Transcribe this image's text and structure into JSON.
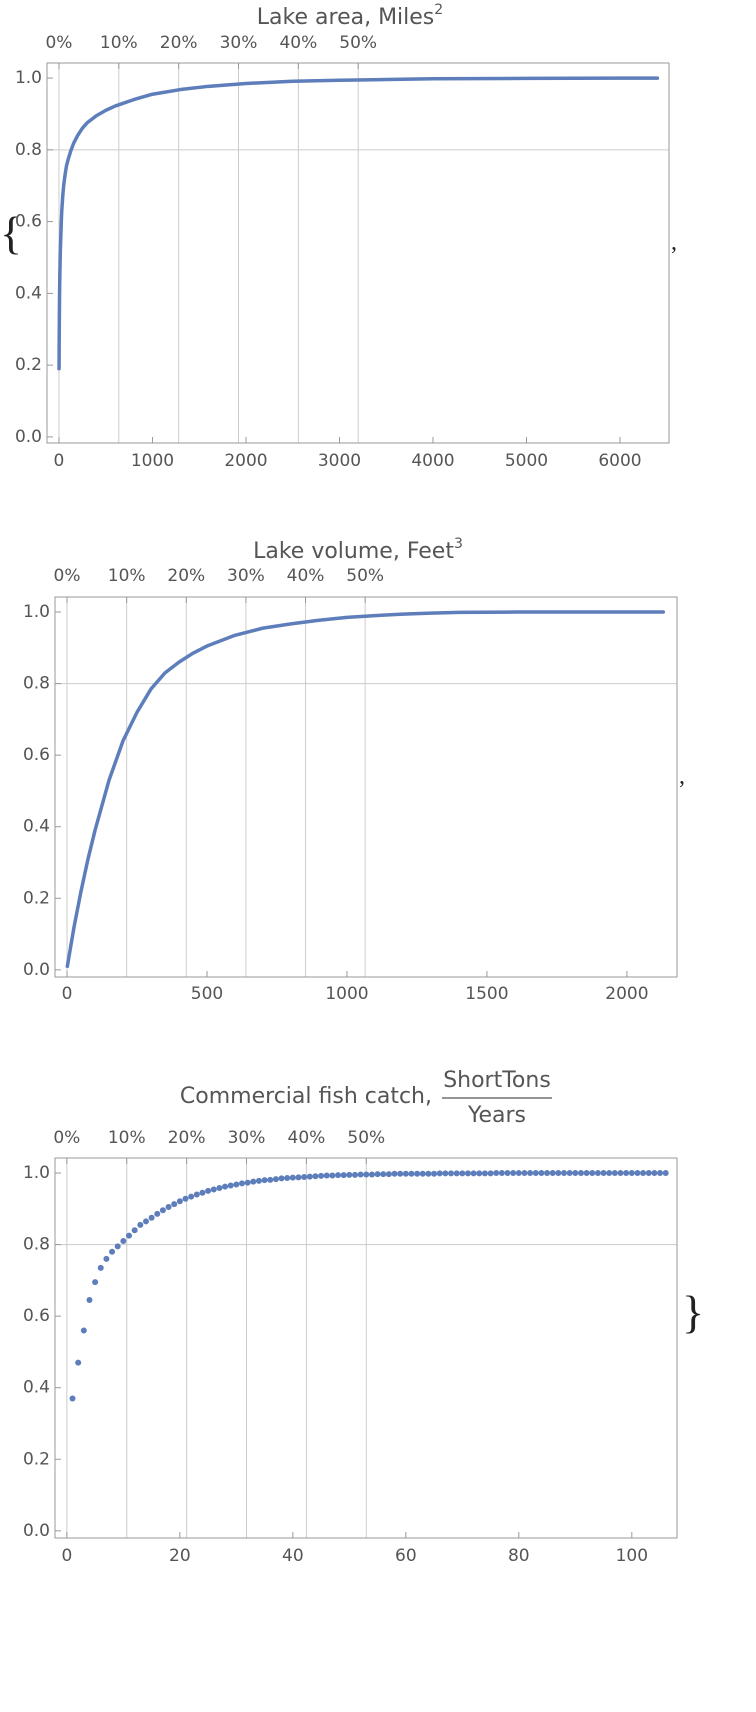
{
  "brackets": {
    "open": "{",
    "separator": ",",
    "close": "}"
  },
  "chart_data": [
    {
      "type": "line",
      "title": "Lake area, Miles",
      "title_exponent": "2",
      "color": "#5d7ebb",
      "x": [
        1,
        2,
        3,
        4,
        5,
        6,
        8,
        10,
        13,
        16,
        20,
        25,
        30,
        40,
        50,
        65,
        80,
        100,
        130,
        160,
        200,
        250,
        300,
        400,
        500,
        600,
        800,
        1000,
        1300,
        1600,
        2000,
        2500,
        3000,
        3500,
        4000,
        5000,
        6000,
        6400
      ],
      "values": [
        0.19,
        0.25,
        0.29,
        0.33,
        0.36,
        0.39,
        0.43,
        0.46,
        0.5,
        0.53,
        0.56,
        0.6,
        0.63,
        0.67,
        0.7,
        0.73,
        0.755,
        0.775,
        0.8,
        0.82,
        0.84,
        0.86,
        0.875,
        0.895,
        0.91,
        0.922,
        0.94,
        0.955,
        0.968,
        0.977,
        0.985,
        0.991,
        0.994,
        0.996,
        0.998,
        0.999,
        1.0,
        1.0
      ],
      "xlim": [
        -128,
        6524
      ],
      "ylim": [
        -0.017,
        1.042
      ],
      "xticks": [
        0,
        1000,
        2000,
        3000,
        4000,
        5000,
        6000
      ],
      "yticks": [
        {
          "value": 0,
          "label": "0.0"
        },
        0.2,
        0.4,
        0.6,
        0.8,
        {
          "value": 1,
          "label": "1.0"
        }
      ],
      "top_ticks": [
        {
          "value": 0,
          "label": "0%"
        },
        {
          "value": 640,
          "label": "10%"
        },
        {
          "value": 1280,
          "label": "20%"
        },
        {
          "value": 1920,
          "label": "30%"
        },
        {
          "value": 2560,
          "label": "40%"
        },
        {
          "value": 3200,
          "label": "50%"
        }
      ],
      "xgrid": true,
      "ygrid": [
        0.8
      ]
    },
    {
      "type": "line",
      "title": "Lake volume, Feet",
      "title_exponent": "3",
      "color": "#5d7ebb",
      "x": [
        1,
        25,
        50,
        75,
        100,
        150,
        200,
        250,
        300,
        350,
        400,
        450,
        500,
        600,
        700,
        800,
        900,
        1000,
        1100,
        1200,
        1300,
        1400,
        1600,
        1800,
        2000,
        2130
      ],
      "values": [
        0.01,
        0.12,
        0.22,
        0.31,
        0.39,
        0.53,
        0.64,
        0.72,
        0.785,
        0.83,
        0.86,
        0.885,
        0.905,
        0.935,
        0.955,
        0.967,
        0.977,
        0.985,
        0.99,
        0.994,
        0.997,
        0.999,
        1.0,
        1.0,
        1.0,
        1.0
      ],
      "xlim": [
        -43,
        2179
      ],
      "ylim": [
        -0.02,
        1.042
      ],
      "xticks": [
        0,
        500,
        1000,
        1500,
        2000
      ],
      "yticks": [
        {
          "value": 0,
          "label": "0.0"
        },
        0.2,
        0.4,
        0.6,
        0.8,
        {
          "value": 1,
          "label": "1.0"
        }
      ],
      "top_ticks": [
        {
          "value": 0,
          "label": "0%"
        },
        {
          "value": 213,
          "label": "10%"
        },
        {
          "value": 426,
          "label": "20%"
        },
        {
          "value": 639,
          "label": "30%"
        },
        {
          "value": 852,
          "label": "40%"
        },
        {
          "value": 1065,
          "label": "50%"
        }
      ],
      "xgrid": true,
      "ygrid": [
        0.8
      ]
    },
    {
      "type": "scatter",
      "title": "Commercial fish catch,",
      "title_numerator": "ShortTons",
      "title_denominator": "Years",
      "color": "#5d7ebb",
      "x": [
        1,
        2,
        3,
        4,
        5,
        6,
        7,
        8,
        9,
        10,
        11,
        12,
        13,
        14,
        15,
        16,
        17,
        18,
        19,
        20,
        21,
        22,
        23,
        24,
        25,
        26,
        27,
        28,
        29,
        30,
        31,
        32,
        33,
        34,
        35,
        36,
        37,
        38,
        39,
        40,
        41,
        42,
        43,
        44,
        45,
        46,
        47,
        48,
        49,
        50,
        51,
        52,
        53,
        54,
        55,
        56,
        57,
        58,
        59,
        60,
        61,
        62,
        63,
        64,
        65,
        66,
        67,
        68,
        69,
        70,
        71,
        72,
        73,
        74,
        75,
        76,
        77,
        78,
        79,
        80,
        81,
        82,
        83,
        84,
        85,
        86,
        87,
        88,
        89,
        90,
        91,
        92,
        93,
        94,
        95,
        96,
        97,
        98,
        99,
        100,
        101,
        102,
        103,
        104,
        105,
        106
      ],
      "values": [
        0.37,
        0.47,
        0.56,
        0.645,
        0.695,
        0.735,
        0.76,
        0.78,
        0.795,
        0.81,
        0.825,
        0.84,
        0.855,
        0.865,
        0.875,
        0.886,
        0.896,
        0.905,
        0.913,
        0.921,
        0.928,
        0.934,
        0.94,
        0.945,
        0.95,
        0.954,
        0.958,
        0.962,
        0.965,
        0.968,
        0.971,
        0.973,
        0.976,
        0.978,
        0.98,
        0.981,
        0.983,
        0.985,
        0.986,
        0.987,
        0.988,
        0.989,
        0.99,
        0.991,
        0.992,
        0.993,
        0.993,
        0.994,
        0.994,
        0.995,
        0.995,
        0.996,
        0.996,
        0.996,
        0.997,
        0.997,
        0.997,
        0.998,
        0.998,
        0.998,
        0.998,
        0.998,
        0.998,
        0.998,
        0.998,
        0.999,
        0.999,
        0.999,
        0.999,
        0.999,
        0.999,
        0.999,
        0.999,
        0.999,
        0.999,
        1,
        1,
        1,
        1,
        1,
        1,
        1,
        1,
        1,
        1,
        1,
        1,
        1,
        1,
        1,
        1,
        1,
        1,
        1,
        1,
        1,
        1,
        1,
        1,
        1,
        1,
        1,
        1,
        1,
        1,
        1
      ],
      "xlim": [
        -2.1,
        108
      ],
      "ylim": [
        -0.02,
        1.042
      ],
      "xticks": [
        0,
        20,
        40,
        60,
        80,
        100
      ],
      "yticks": [
        {
          "value": 0,
          "label": "0.0"
        },
        0.2,
        0.4,
        0.6,
        0.8,
        {
          "value": 1,
          "label": "1.0"
        }
      ],
      "top_ticks": [
        {
          "value": 0,
          "label": "0%"
        },
        {
          "value": 10.6,
          "label": "10%"
        },
        {
          "value": 21.2,
          "label": "20%"
        },
        {
          "value": 31.8,
          "label": "30%"
        },
        {
          "value": 42.4,
          "label": "40%"
        },
        {
          "value": 53,
          "label": "50%"
        }
      ],
      "xgrid": true,
      "ygrid": [
        0.8
      ]
    }
  ]
}
